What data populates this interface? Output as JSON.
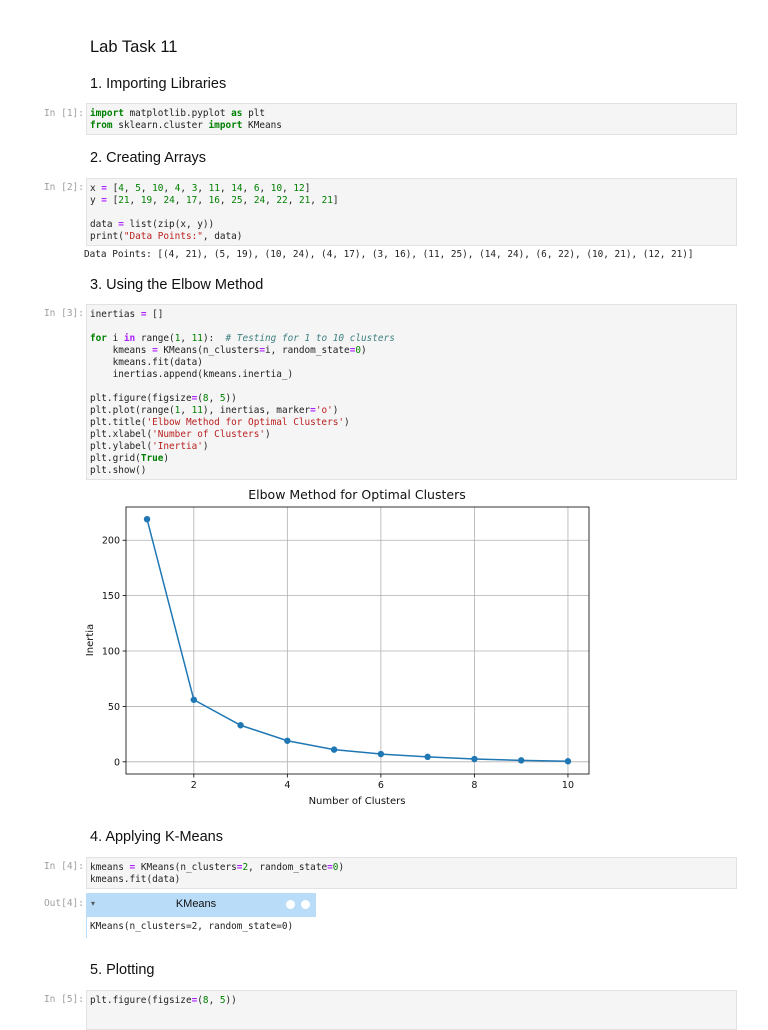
{
  "notebook": {
    "title": "Lab Task 11",
    "sections": [
      "1. Importing Libraries",
      "2. Creating Arrays",
      "3. Using the Elbow Method",
      "4. Applying K-Means",
      "5. Plotting"
    ],
    "prompts": {
      "in1": "In [1]:",
      "in2": "In [2]:",
      "in3": "In [3]:",
      "in4": "In [4]:",
      "out4": "Out[4]:",
      "in5": "In [5]:"
    },
    "cell2_output": "Data Points: [(4, 21), (5, 19), (10, 24), (4, 17), (3, 16), (11, 25), (14, 24), (6, 22), (10, 21), (12, 21)]",
    "widget": {
      "toggle": "▾",
      "title": "KMeans",
      "repr": "KMeans(n_clusters=2, random_state=0)"
    }
  },
  "chart_data": {
    "type": "line",
    "title": "Elbow Method for Optimal Clusters",
    "xlabel": "Number of Clusters",
    "ylabel": "Inertia",
    "x": [
      1,
      2,
      3,
      4,
      5,
      6,
      7,
      8,
      9,
      10
    ],
    "series": [
      {
        "values": [
          219,
          56,
          33,
          19,
          11,
          7,
          4.5,
          2.5,
          1.3,
          0.5
        ],
        "color": "#1f77b4",
        "marker": "o"
      }
    ],
    "xticks": [
      2,
      4,
      6,
      8,
      10
    ],
    "yticks": [
      0,
      50,
      100,
      150,
      200
    ],
    "xlim": [
      0.55,
      10.45
    ],
    "ylim": [
      -11,
      230
    ],
    "grid": true
  }
}
